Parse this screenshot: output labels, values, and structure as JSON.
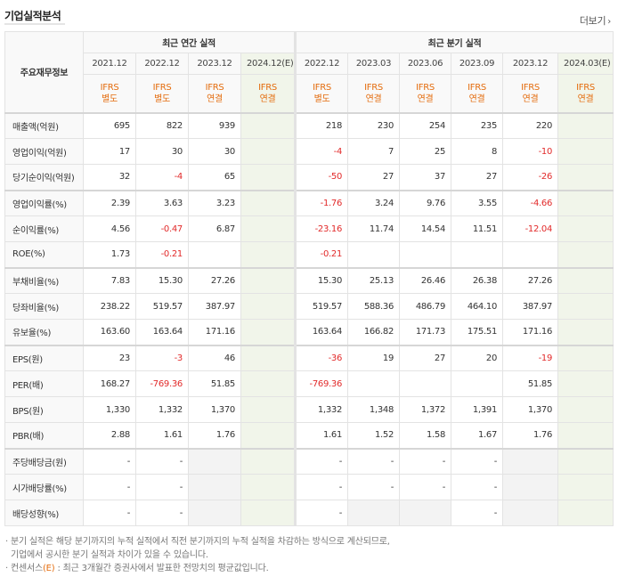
{
  "header": {
    "title": "기업실적분석",
    "more_label": "더보기",
    "chevron_icon": "chevron-right-icon"
  },
  "table": {
    "row_header_label": "주요재무정보",
    "groups": {
      "annual": "최근 연간 실적",
      "quarterly": "최근 분기 실적"
    },
    "annual_dates": [
      "2021.12",
      "2022.12",
      "2023.12",
      "2024.12(E)"
    ],
    "quarter_dates": [
      "2022.12",
      "2023.03",
      "2023.06",
      "2023.09",
      "2023.12",
      "2024.03(E)"
    ],
    "annual_ifrs": [
      [
        "IFRS",
        "별도"
      ],
      [
        "IFRS",
        "별도"
      ],
      [
        "IFRS",
        "연결"
      ],
      [
        "IFRS",
        "연결"
      ]
    ],
    "quarter_ifrs": [
      [
        "IFRS",
        "별도"
      ],
      [
        "IFRS",
        "연결"
      ],
      [
        "IFRS",
        "연결"
      ],
      [
        "IFRS",
        "연결"
      ],
      [
        "IFRS",
        "연결"
      ],
      [
        "IFRS",
        "연결"
      ]
    ],
    "rows": [
      {
        "label": "매출액(억원)",
        "annual": [
          "695",
          "822",
          "939",
          ""
        ],
        "quarter": [
          "218",
          "230",
          "254",
          "235",
          "220",
          ""
        ]
      },
      {
        "label": "영업이익(억원)",
        "annual": [
          "17",
          "30",
          "30",
          ""
        ],
        "quarter": [
          "-4",
          "7",
          "25",
          "8",
          "-10",
          ""
        ]
      },
      {
        "label": "당기순이익(억원)",
        "annual": [
          "32",
          "-4",
          "65",
          ""
        ],
        "quarter": [
          "-50",
          "27",
          "37",
          "27",
          "-26",
          ""
        ]
      },
      {
        "label": "영업이익률(%)",
        "annual": [
          "2.39",
          "3.63",
          "3.23",
          ""
        ],
        "quarter": [
          "-1.76",
          "3.24",
          "9.76",
          "3.55",
          "-4.66",
          ""
        ]
      },
      {
        "label": "순이익률(%)",
        "annual": [
          "4.56",
          "-0.47",
          "6.87",
          ""
        ],
        "quarter": [
          "-23.16",
          "11.74",
          "14.54",
          "11.51",
          "-12.04",
          ""
        ]
      },
      {
        "label": "ROE(%)",
        "annual": [
          "1.73",
          "-0.21",
          "",
          ""
        ],
        "quarter": [
          "-0.21",
          "",
          "",
          "",
          "",
          ""
        ]
      },
      {
        "label": "부채비율(%)",
        "annual": [
          "7.83",
          "15.30",
          "27.26",
          ""
        ],
        "quarter": [
          "15.30",
          "25.13",
          "26.46",
          "26.38",
          "27.26",
          ""
        ]
      },
      {
        "label": "당좌비율(%)",
        "annual": [
          "238.22",
          "519.57",
          "387.97",
          ""
        ],
        "quarter": [
          "519.57",
          "588.36",
          "486.79",
          "464.10",
          "387.97",
          ""
        ]
      },
      {
        "label": "유보율(%)",
        "annual": [
          "163.60",
          "163.64",
          "171.16",
          ""
        ],
        "quarter": [
          "163.64",
          "166.82",
          "171.73",
          "175.51",
          "171.16",
          ""
        ]
      },
      {
        "label": "EPS(원)",
        "annual": [
          "23",
          "-3",
          "46",
          ""
        ],
        "quarter": [
          "-36",
          "19",
          "27",
          "20",
          "-19",
          ""
        ]
      },
      {
        "label": "PER(배)",
        "annual": [
          "168.27",
          "-769.36",
          "51.85",
          ""
        ],
        "quarter": [
          "-769.36",
          "",
          "",
          "",
          "51.85",
          ""
        ]
      },
      {
        "label": "BPS(원)",
        "annual": [
          "1,330",
          "1,332",
          "1,370",
          ""
        ],
        "quarter": [
          "1,332",
          "1,348",
          "1,372",
          "1,391",
          "1,370",
          ""
        ]
      },
      {
        "label": "PBR(배)",
        "annual": [
          "2.88",
          "1.61",
          "1.76",
          ""
        ],
        "quarter": [
          "1.61",
          "1.52",
          "1.58",
          "1.67",
          "1.76",
          ""
        ]
      },
      {
        "label": "주당배당금(원)",
        "annual": [
          "-",
          "-",
          "",
          ""
        ],
        "quarter": [
          "-",
          "-",
          "-",
          "-",
          "",
          ""
        ]
      },
      {
        "label": "시가배당률(%)",
        "annual": [
          "-",
          "-",
          "",
          ""
        ],
        "quarter": [
          "-",
          "-",
          "-",
          "-",
          "",
          ""
        ]
      },
      {
        "label": "배당성향(%)",
        "annual": [
          "-",
          "-",
          "",
          ""
        ],
        "quarter": [
          "-",
          "",
          "",
          "-",
          "",
          ""
        ]
      }
    ],
    "blank_cells": {
      "annual": [
        [],
        [],
        [],
        [],
        [],
        [],
        [],
        [],
        [],
        [],
        [],
        [],
        [],
        [
          2
        ],
        [
          2
        ],
        [
          2
        ]
      ],
      "quarter": [
        [],
        [],
        [],
        [],
        [],
        [],
        [],
        [],
        [],
        [],
        [],
        [],
        [],
        [
          4
        ],
        [
          4
        ],
        [
          1,
          2,
          4
        ]
      ]
    }
  },
  "notes": {
    "line1": "· 분기 실적은 해당 분기까지의 누적 실적에서 직전 분기까지의 누적 실적을 차감하는 방식으로 계산되므로,",
    "line2": "기업에서 공시한 분기 실적과 차이가 있을 수 있습니다.",
    "line3_prefix": "· 컨센서스",
    "line3_tag": "(E)",
    "line3_suffix": " : 최근 3개월간 증권사에서 발표한 전망치의 평균값입니다."
  }
}
